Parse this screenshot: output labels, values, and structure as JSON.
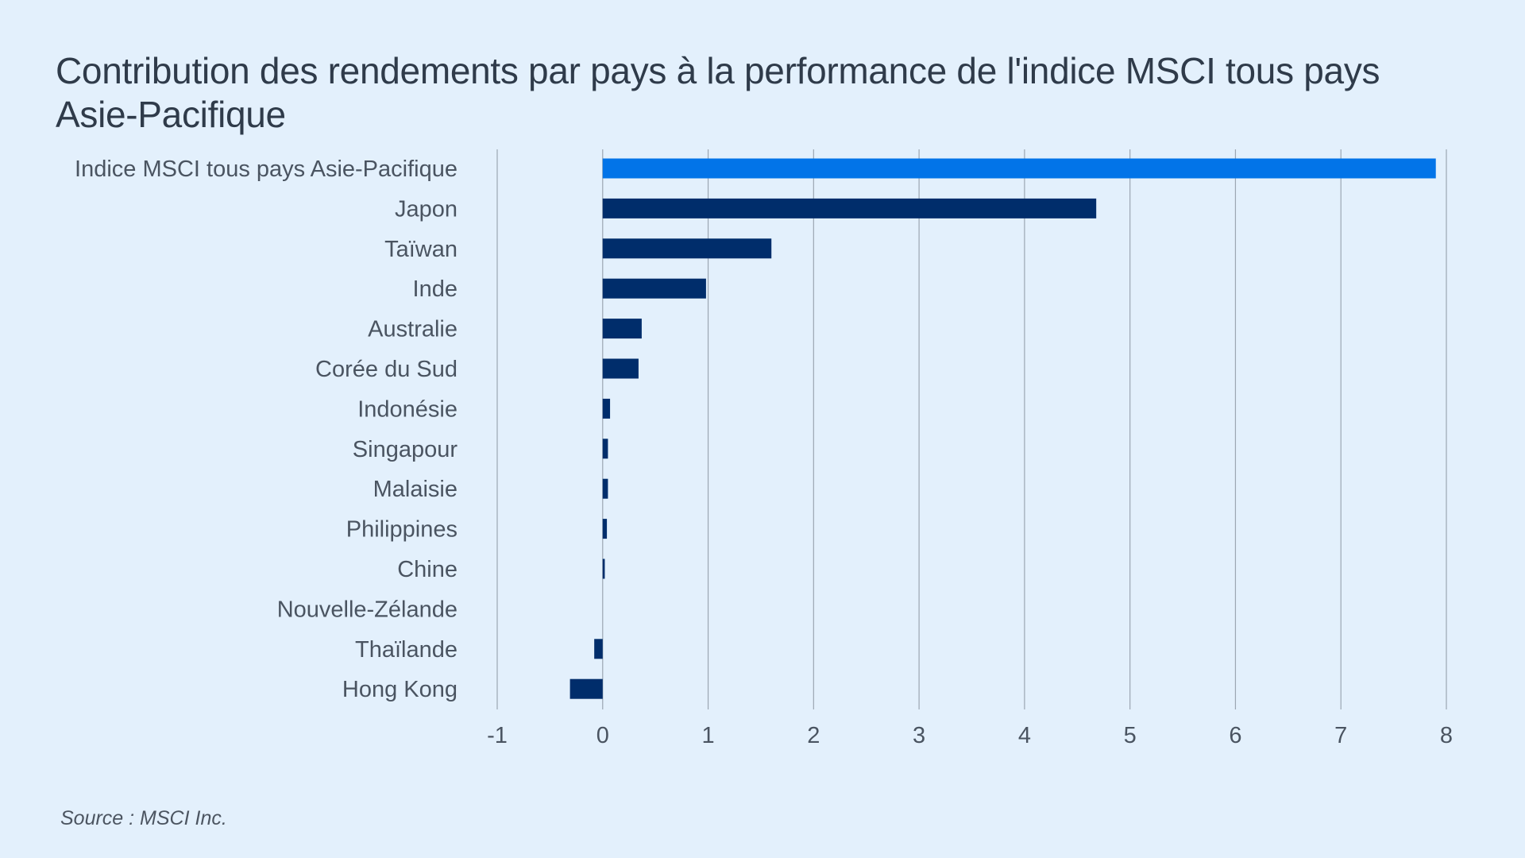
{
  "chart_data": {
    "type": "bar",
    "orientation": "horizontal",
    "title": "Contribution des rendements par pays à la performance de l'indice MSCI tous pays Asie-Pacifique",
    "categories": [
      "Indice MSCI tous pays Asie-Pacifique",
      "Japon",
      "Taïwan",
      "Inde",
      "Australie",
      "Corée du Sud",
      "Indonésie",
      "Singapour",
      "Malaisie",
      "Philippines",
      "Chine",
      "Nouvelle-Zélande",
      "Thaïlande",
      "Hong Kong"
    ],
    "values": [
      7.9,
      4.68,
      1.6,
      0.98,
      0.37,
      0.34,
      0.07,
      0.05,
      0.05,
      0.04,
      0.02,
      0.0,
      -0.08,
      -0.31
    ],
    "xlim": [
      -1,
      8
    ],
    "xticks": [
      "-1",
      "0",
      "1",
      "2",
      "3",
      "4",
      "5",
      "6",
      "7",
      "8"
    ],
    "xlabel": "",
    "ylabel": "",
    "grid": true,
    "legend": "none",
    "colors": {
      "highlight": "#0274e8",
      "bar": "#002d6b"
    }
  },
  "source": "Source : MSCI Inc."
}
